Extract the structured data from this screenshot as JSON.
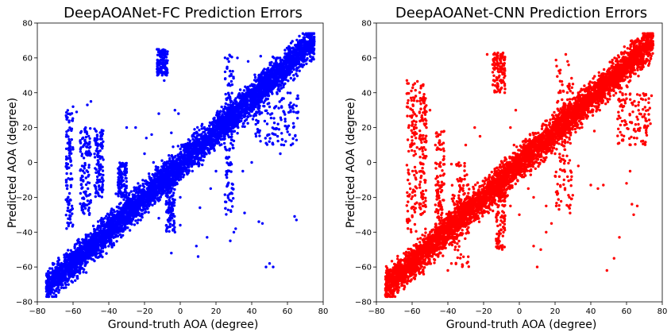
{
  "chart_data": [
    {
      "type": "scatter",
      "title": "DeepAOANet-FC Prediction Errors",
      "xlabel": "Ground-truth AOA (degree)",
      "ylabel": "Predicted AOA (degree)",
      "xlim": [
        -80,
        80
      ],
      "ylim": [
        -80,
        80
      ],
      "xticks": [
        "−80",
        "−60",
        "−40",
        "−20",
        "0",
        "20",
        "40",
        "60",
        "80"
      ],
      "yticks": [
        "80",
        "60",
        "40",
        "20",
        "0",
        "−20",
        "−40",
        "−60",
        "−80"
      ],
      "color": "#0000ff",
      "series": [
        {
          "trend": {
            "x": [
              -75,
              75
            ],
            "y": [
              -72,
              70
            ]
          },
          "outlier_clusters": [
            {
              "x": [
                -64,
                -60
              ],
              "y": [
                -38,
                30
              ]
            },
            {
              "x": [
                -56,
                -50
              ],
              "y": [
                -30,
                20
              ]
            },
            {
              "x": [
                -48,
                -43
              ],
              "y": [
                -20,
                20
              ]
            },
            {
              "x": [
                -35,
                -30
              ],
              "y": [
                -20,
                0
              ]
            },
            {
              "x": [
                -13,
                -7
              ],
              "y": [
                50,
                65
              ]
            },
            {
              "x": [
                -8,
                -3
              ],
              "y": [
                -40,
                -5
              ]
            },
            {
              "x": [
                25,
                30
              ],
              "y": [
                -30,
                62
              ]
            },
            {
              "x": [
                42,
                66
              ],
              "y": [
                10,
                40
              ]
            }
          ],
          "points": [
            [
              -60,
              32
            ],
            [
              -58,
              29
            ],
            [
              -62,
              10
            ],
            [
              -30,
              20
            ],
            [
              -25,
              20
            ],
            [
              -9,
              47
            ],
            [
              -12,
              28
            ],
            [
              -4,
              9
            ],
            [
              -5,
              17
            ],
            [
              -12,
              -32
            ],
            [
              -5,
              -52
            ],
            [
              10,
              -54
            ],
            [
              9,
              -48
            ],
            [
              11,
              -26
            ],
            [
              15,
              -43
            ],
            [
              -8,
              58
            ],
            [
              0,
              -36
            ],
            [
              18,
              15
            ],
            [
              28,
              61
            ],
            [
              32,
              60
            ],
            [
              38,
              58
            ],
            [
              45,
              61
            ],
            [
              44,
              -34
            ],
            [
              50,
              -58
            ],
            [
              48,
              -60
            ],
            [
              52,
              -60
            ],
            [
              46,
              -35
            ],
            [
              36,
              -29
            ],
            [
              31,
              -38
            ],
            [
              35,
              -5
            ],
            [
              40,
              0
            ],
            [
              64,
              -31
            ],
            [
              65,
              -33
            ],
            [
              62,
              10
            ],
            [
              60,
              20
            ],
            [
              12,
              21
            ],
            [
              8,
              19
            ],
            [
              -15,
              0
            ],
            [
              -20,
              5
            ],
            [
              -19,
              14
            ],
            [
              -16,
              16
            ],
            [
              56,
              5
            ],
            [
              58,
              10
            ],
            [
              -3,
              30
            ],
            [
              -1,
              28
            ],
            [
              -30,
              -20
            ],
            [
              -36,
              -18
            ],
            [
              28,
              -45
            ],
            [
              30,
              -40
            ],
            [
              22,
              24
            ],
            [
              25,
              32
            ],
            [
              -52,
              33
            ],
            [
              -50,
              35
            ],
            [
              -45,
              -10
            ],
            [
              -44,
              -32
            ],
            [
              -3,
              -40
            ],
            [
              0,
              -20
            ],
            [
              3,
              -5
            ],
            [
              17,
              -15
            ],
            [
              20,
              -5
            ]
          ]
        }
      ]
    },
    {
      "type": "scatter",
      "title": "DeepAOANet-CNN Prediction Errors",
      "xlabel": "Ground-truth AOA (degree)",
      "ylabel": "Predicted AOA (degree)",
      "xlim": [
        -80,
        80
      ],
      "ylim": [
        -80,
        80
      ],
      "xticks": [
        "−80",
        "−60",
        "−40",
        "−20",
        "0",
        "20",
        "40",
        "60",
        "80"
      ],
      "yticks": [
        "80",
        "60",
        "40",
        "20",
        "0",
        "−20",
        "−40",
        "−60",
        "−80"
      ],
      "color": "#ff0000",
      "series": [
        {
          "trend": {
            "x": [
              -75,
              75
            ],
            "y": [
              -72,
              70
            ]
          },
          "outlier_clusters": [
            {
              "x": [
                -63,
                -57
              ],
              "y": [
                -40,
                48
              ]
            },
            {
              "x": [
                -56,
                -52
              ],
              "y": [
                -30,
                45
              ]
            },
            {
              "x": [
                -47,
                -42
              ],
              "y": [
                -50,
                20
              ]
            },
            {
              "x": [
                -38,
                -28
              ],
              "y": [
                -60,
                0
              ]
            },
            {
              "x": [
                -15,
                -8
              ],
              "y": [
                40,
                63
              ]
            },
            {
              "x": [
                -13,
                -8
              ],
              "y": [
                -50,
                -5
              ]
            },
            {
              "x": [
                20,
                30
              ],
              "y": [
                -30,
                60
              ]
            },
            {
              "x": [
                55,
                74
              ],
              "y": [
                10,
                40
              ]
            }
          ],
          "points": [
            [
              -18,
              62
            ],
            [
              -10,
              55
            ],
            [
              -12,
              45
            ],
            [
              -2,
              30
            ],
            [
              -5,
              20
            ],
            [
              26,
              62
            ],
            [
              27,
              58
            ],
            [
              30,
              45
            ],
            [
              33,
              40
            ],
            [
              38,
              30
            ],
            [
              42,
              18
            ],
            [
              40,
              -13
            ],
            [
              44,
              -15
            ],
            [
              47,
              -13
            ],
            [
              49,
              -62
            ],
            [
              53,
              -55
            ],
            [
              56,
              -43
            ],
            [
              63,
              -24
            ],
            [
              64,
              -30
            ],
            [
              66,
              -25
            ],
            [
              60,
              -12
            ],
            [
              62,
              -5
            ],
            [
              18,
              -35
            ],
            [
              15,
              -40
            ],
            [
              12,
              -50
            ],
            [
              10,
              -60
            ],
            [
              8,
              -48
            ],
            [
              -40,
              -62
            ],
            [
              -38,
              -58
            ],
            [
              -36,
              -50
            ],
            [
              0,
              -30
            ],
            [
              -5,
              -25
            ],
            [
              20,
              5
            ],
            [
              24,
              15
            ],
            [
              35,
              22
            ],
            [
              36,
              30
            ],
            [
              -25,
              20
            ],
            [
              -22,
              15
            ],
            [
              -30,
              10
            ],
            [
              -47,
              10
            ],
            [
              -52,
              20
            ],
            [
              -50,
              30
            ],
            [
              -3,
              10
            ],
            [
              2,
              12
            ],
            [
              5,
              -15
            ],
            [
              8,
              -20
            ],
            [
              15,
              -25
            ],
            [
              25,
              -10
            ],
            [
              28,
              -20
            ],
            [
              33,
              -2
            ],
            [
              45,
              30
            ],
            [
              50,
              40
            ],
            [
              55,
              25
            ],
            [
              70,
              20
            ],
            [
              72,
              30
            ]
          ]
        }
      ]
    }
  ]
}
